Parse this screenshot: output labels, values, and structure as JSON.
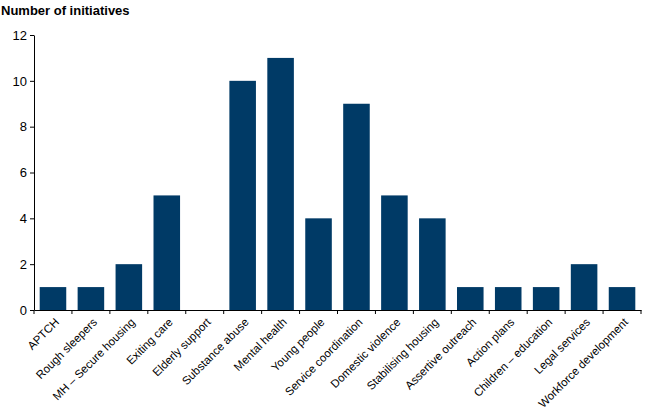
{
  "chart_data": {
    "type": "bar",
    "ylabel": "Number of initiatives",
    "categories": [
      "APTCH",
      "Rough sleepers",
      "MH – Secure housing",
      "Exiting care",
      "Elderly support",
      "Substance abuse",
      "Mental health",
      "Young people",
      "Service coordination",
      "Domestic violence",
      "Stabilising housing",
      "Assertive outreach",
      "Action plans",
      "Children – education",
      "Legal services",
      "Workforce development"
    ],
    "values": [
      1,
      1,
      2,
      5,
      0,
      10,
      11,
      4,
      9,
      5,
      4,
      1,
      1,
      1,
      2,
      1
    ],
    "color": "#003a66",
    "ylim": [
      0,
      12
    ],
    "yticks": [
      0,
      2,
      4,
      6,
      8,
      10,
      12
    ],
    "grid": false
  }
}
